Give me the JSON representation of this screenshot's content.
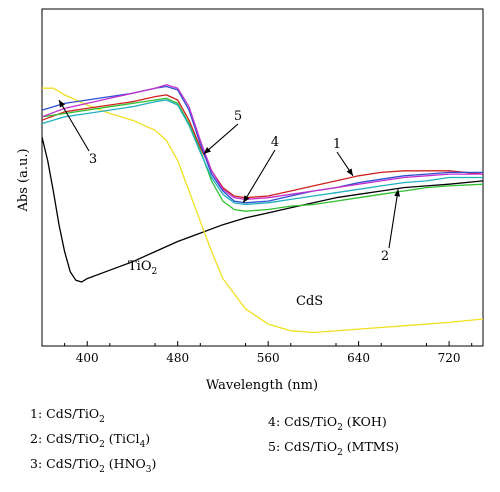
{
  "chart_data": {
    "type": "line",
    "xlabel": "Wavelength (nm)",
    "ylabel": "Abs (a.u.)",
    "xlim": [
      360,
      750
    ],
    "ylim": [
      0,
      1
    ],
    "x_ticks": [
      400,
      480,
      560,
      640,
      720
    ],
    "x_tick_labels": [
      "400",
      "480",
      "560",
      "640",
      "720"
    ],
    "grid": false,
    "series": [
      {
        "name": "TiO2",
        "color": "#000000",
        "x": [
          360,
          365,
          370,
          375,
          380,
          385,
          390,
          395,
          400,
          420,
          440,
          460,
          480,
          500,
          520,
          540,
          560,
          580,
          600,
          620,
          640,
          660,
          680,
          700,
          720,
          750
        ],
        "y": [
          0.62,
          0.55,
          0.46,
          0.36,
          0.28,
          0.22,
          0.195,
          0.19,
          0.2,
          0.225,
          0.25,
          0.28,
          0.31,
          0.335,
          0.36,
          0.38,
          0.395,
          0.41,
          0.425,
          0.44,
          0.45,
          0.46,
          0.47,
          0.475,
          0.48,
          0.49
        ]
      },
      {
        "name": "CdS",
        "color": "#f0e020",
        "x": [
          360,
          370,
          380,
          390,
          400,
          420,
          440,
          460,
          470,
          480,
          490,
          500,
          510,
          520,
          540,
          560,
          580,
          600,
          640,
          680,
          720,
          750
        ],
        "y": [
          0.765,
          0.765,
          0.745,
          0.73,
          0.715,
          0.69,
          0.67,
          0.64,
          0.61,
          0.55,
          0.46,
          0.37,
          0.28,
          0.2,
          0.11,
          0.065,
          0.045,
          0.04,
          0.05,
          0.06,
          0.07,
          0.08
        ]
      },
      {
        "name": "1: CdS/TiO2",
        "color": "#d02020",
        "x": [
          360,
          380,
          400,
          420,
          440,
          460,
          470,
          480,
          490,
          500,
          510,
          520,
          530,
          540,
          560,
          580,
          600,
          620,
          640,
          660,
          680,
          700,
          720,
          750
        ],
        "y": [
          0.67,
          0.695,
          0.705,
          0.715,
          0.725,
          0.74,
          0.745,
          0.73,
          0.67,
          0.59,
          0.52,
          0.47,
          0.445,
          0.44,
          0.445,
          0.46,
          0.475,
          0.49,
          0.505,
          0.515,
          0.52,
          0.52,
          0.52,
          0.51
        ]
      },
      {
        "name": "2: CdS/TiO2 (TiCl4)",
        "color": "#30c030",
        "x": [
          360,
          380,
          400,
          420,
          440,
          460,
          470,
          480,
          490,
          500,
          510,
          520,
          530,
          540,
          560,
          580,
          600,
          620,
          640,
          660,
          680,
          700,
          720,
          750
        ],
        "y": [
          0.68,
          0.69,
          0.7,
          0.71,
          0.72,
          0.73,
          0.735,
          0.72,
          0.66,
          0.58,
          0.49,
          0.43,
          0.405,
          0.4,
          0.405,
          0.415,
          0.42,
          0.43,
          0.44,
          0.45,
          0.46,
          0.47,
          0.475,
          0.48
        ]
      },
      {
        "name": "3: CdS/TiO2 (HNO3)",
        "color": "#3050d0",
        "x": [
          360,
          380,
          400,
          420,
          440,
          460,
          470,
          480,
          490,
          500,
          510,
          520,
          530,
          540,
          560,
          580,
          600,
          620,
          640,
          660,
          680,
          700,
          720,
          750
        ],
        "y": [
          0.7,
          0.72,
          0.73,
          0.74,
          0.75,
          0.765,
          0.77,
          0.76,
          0.7,
          0.6,
          0.51,
          0.46,
          0.43,
          0.425,
          0.43,
          0.445,
          0.46,
          0.47,
          0.485,
          0.495,
          0.505,
          0.51,
          0.515,
          0.515
        ]
      },
      {
        "name": "4: CdS/TiO2 (KOH)",
        "color": "#20b0c0",
        "x": [
          360,
          380,
          400,
          420,
          440,
          460,
          470,
          480,
          490,
          500,
          510,
          520,
          530,
          540,
          560,
          580,
          600,
          620,
          640,
          660,
          680,
          700,
          720,
          750
        ],
        "y": [
          0.66,
          0.68,
          0.69,
          0.7,
          0.71,
          0.725,
          0.73,
          0.715,
          0.655,
          0.575,
          0.5,
          0.45,
          0.425,
          0.42,
          0.425,
          0.435,
          0.445,
          0.455,
          0.465,
          0.475,
          0.485,
          0.49,
          0.5,
          0.5
        ]
      },
      {
        "name": "5: CdS/TiO2 (MTMS)",
        "color": "#c030d0",
        "x": [
          360,
          380,
          400,
          420,
          440,
          460,
          470,
          480,
          490,
          500,
          510,
          520,
          530,
          540,
          560,
          580,
          600,
          620,
          640,
          660,
          680,
          700,
          720,
          750
        ],
        "y": [
          0.68,
          0.705,
          0.72,
          0.735,
          0.75,
          0.765,
          0.775,
          0.765,
          0.71,
          0.61,
          0.52,
          0.465,
          0.44,
          0.435,
          0.44,
          0.45,
          0.46,
          0.47,
          0.48,
          0.49,
          0.5,
          0.505,
          0.51,
          0.51
        ]
      }
    ],
    "annotations": [
      {
        "text": "5",
        "target_x": 503,
        "target_y": 0.57
      },
      {
        "text": "4",
        "target_x": 538,
        "target_y": 0.425
      },
      {
        "text": "1",
        "target_x": 635,
        "target_y": 0.505
      },
      {
        "text": "2",
        "target_x": 675,
        "target_y": 0.465
      },
      {
        "text": "3",
        "target_x": 375,
        "target_y": 0.73
      }
    ],
    "curve_labels": [
      {
        "main": "TiO",
        "sub": "2"
      },
      {
        "main": "CdS",
        "sub": ""
      }
    ],
    "legend": [
      {
        "num": "1: ",
        "main": "CdS/TiO",
        "sub": "2",
        "rest": "",
        "sub2": "",
        "tail": ""
      },
      {
        "num": "2: ",
        "main": "CdS/TiO",
        "sub": "2",
        "rest": " (TiCl",
        "sub2": "4",
        "tail": ")"
      },
      {
        "num": "3: ",
        "main": "CdS/TiO",
        "sub": "2",
        "rest": " (HNO",
        "sub2": "3",
        "tail": ")"
      },
      {
        "num": "4: ",
        "main": "CdS/TiO",
        "sub": "2",
        "rest": " (KOH)",
        "sub2": "",
        "tail": ""
      },
      {
        "num": "5: ",
        "main": "CdS/TiO",
        "sub": "2",
        "rest": " (MTMS)",
        "sub2": "",
        "tail": ""
      }
    ]
  }
}
